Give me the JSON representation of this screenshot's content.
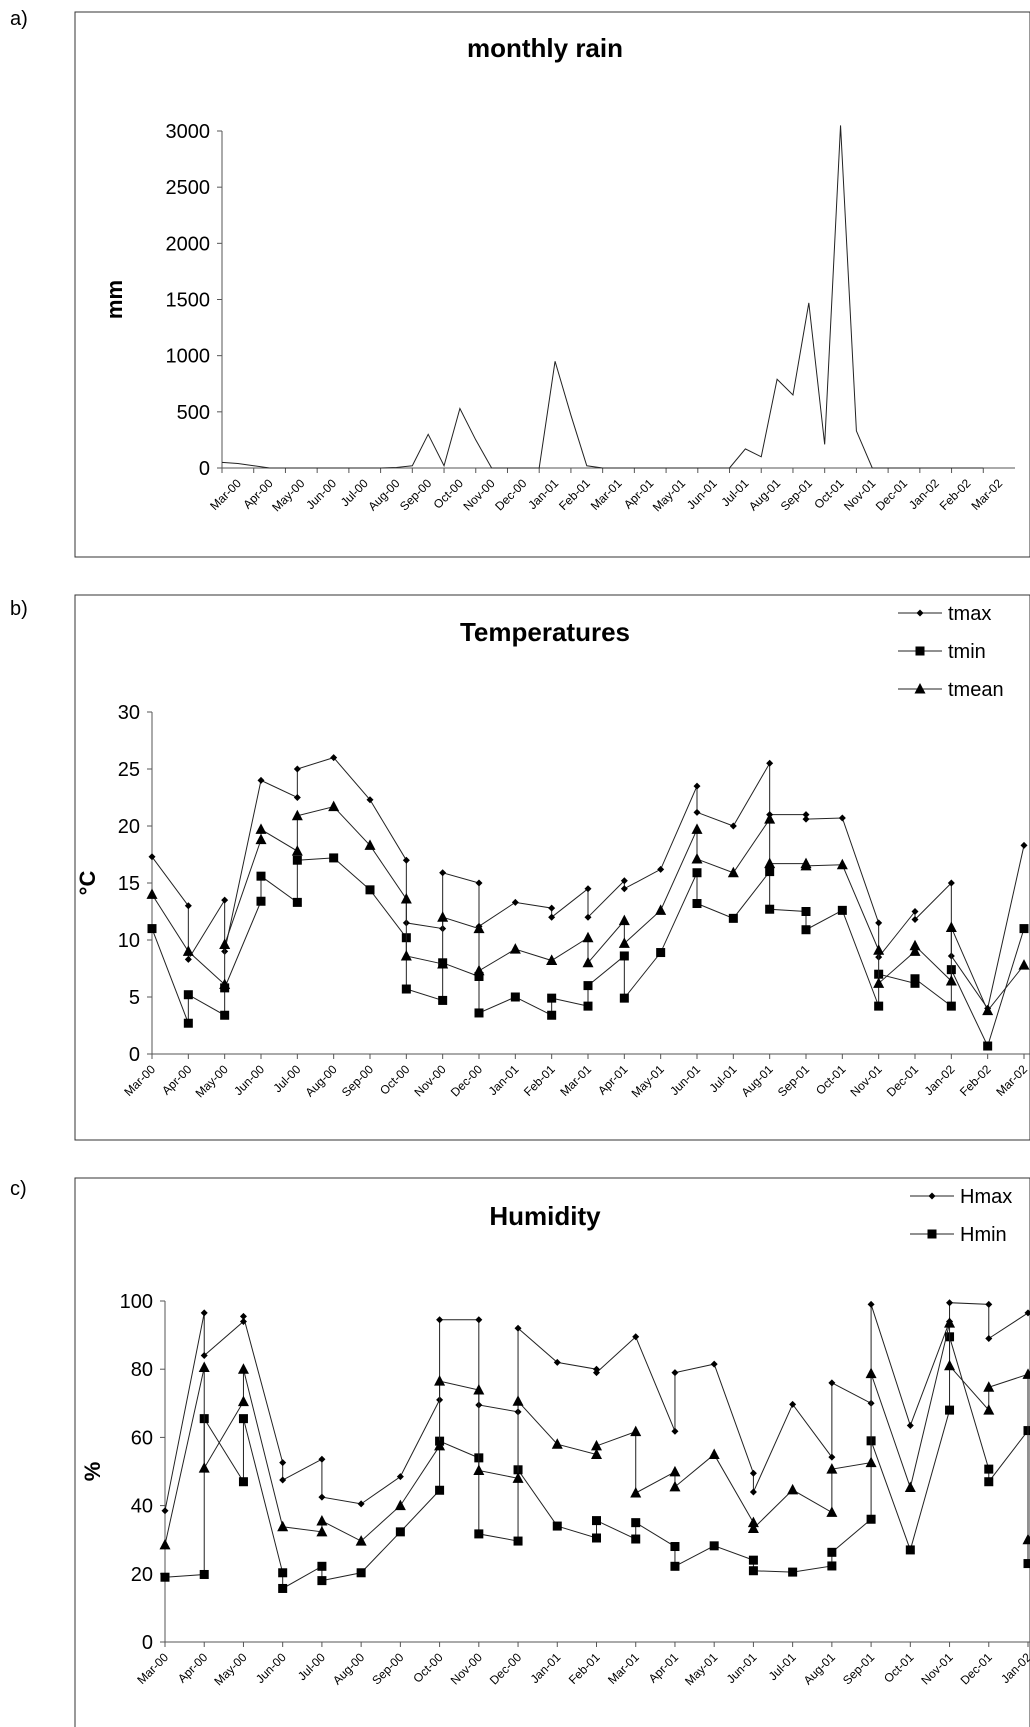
{
  "panels": [
    "a)",
    "b)",
    "c)"
  ],
  "chart_data": [
    {
      "type": "line",
      "title": "monthly rain",
      "ylabel": "mm",
      "xlabel": "",
      "ylim": [
        0,
        3000
      ],
      "yticks": [
        0,
        500,
        1000,
        1500,
        2000,
        2500,
        3000
      ],
      "grid": false,
      "categories": [
        "Mar-00",
        "Apr-00",
        "May-00",
        "Jun-00",
        "Jul-00",
        "Aug-00",
        "Sep-00",
        "Oct-00",
        "Nov-00",
        "Dec-00",
        "Jan-01",
        "Feb-01",
        "Mar-01",
        "Apr-01",
        "May-01",
        "Jun-01",
        "Jul-01",
        "Aug-01",
        "Sep-01",
        "Oct-01",
        "Nov-01",
        "Dec-01",
        "Jan-02",
        "Feb-02",
        "Mar-02"
      ],
      "series": [
        {
          "x": [
            0,
            1,
            2,
            3,
            4,
            5,
            6,
            7,
            8,
            9,
            10,
            11,
            12,
            13,
            14,
            15,
            16,
            17,
            18,
            19,
            20,
            21,
            22,
            23,
            24,
            25,
            26,
            27,
            28,
            29,
            30,
            31,
            32,
            33,
            34,
            35,
            36,
            37,
            38,
            39,
            40,
            41,
            42,
            43,
            44,
            45,
            46,
            47,
            48
          ],
          "values": [
            50,
            40,
            20,
            0,
            0,
            0,
            0,
            0,
            0,
            0,
            0,
            5,
            20,
            300,
            20,
            530,
            250,
            0,
            0,
            0,
            0,
            950,
            470,
            20,
            0,
            0,
            0,
            0,
            0,
            0,
            0,
            0,
            0,
            170,
            100,
            790,
            650,
            1470,
            210,
            3050,
            330,
            0,
            0,
            0,
            0,
            0,
            0,
            0,
            0
          ]
        }
      ]
    },
    {
      "type": "line",
      "title": "Temperatures",
      "ylabel": "°C",
      "xlabel": "",
      "ylim": [
        0,
        30
      ],
      "yticks": [
        0,
        5,
        10,
        15,
        20,
        25,
        30
      ],
      "grid": false,
      "legend_position": "top-right",
      "categories": [
        "Mar-00",
        "Apr-00",
        "May-00",
        "Jun-00",
        "Jul-00",
        "Aug-00",
        "Sep-00",
        "Oct-00",
        "Nov-00",
        "Dec-00",
        "Jan-01",
        "Feb-01",
        "Mar-01",
        "Apr-01",
        "May-01",
        "Jun-01",
        "Jul-01",
        "Aug-01",
        "Sep-01",
        "Oct-01",
        "Nov-01",
        "Dec-01",
        "Jan-02",
        "Feb-02",
        "Mar-02"
      ],
      "series": [
        {
          "name": "tmax",
          "marker": "diamond",
          "x": [
            0,
            1,
            1,
            2,
            2,
            3,
            4,
            4,
            5,
            6,
            7,
            7,
            8,
            8,
            9,
            9,
            10,
            11,
            11,
            12,
            12,
            13,
            13,
            14,
            15,
            15,
            16,
            17,
            17,
            18,
            18,
            19,
            20,
            20,
            21,
            21,
            22,
            22,
            23,
            24
          ],
          "values": [
            17.3,
            13.0,
            8.3,
            13.5,
            9.0,
            24.0,
            22.5,
            25.0,
            26.0,
            22.3,
            17.0,
            11.5,
            11.0,
            15.9,
            15.0,
            11.2,
            13.3,
            12.8,
            12.0,
            14.5,
            12.0,
            15.2,
            14.5,
            16.2,
            23.5,
            21.2,
            20.0,
            25.5,
            21.0,
            21.0,
            20.6,
            20.7,
            11.5,
            8.5,
            12.5,
            11.8,
            15.0,
            8.6,
            4.0,
            18.3
          ]
        },
        {
          "name": "tmin",
          "marker": "square",
          "x": [
            0,
            1,
            1,
            2,
            2,
            3,
            3,
            4,
            4,
            5,
            6,
            7,
            7,
            8,
            8,
            9,
            9,
            10,
            11,
            11,
            12,
            12,
            13,
            13,
            14,
            15,
            15,
            16,
            17,
            17,
            18,
            18,
            19,
            20,
            20,
            21,
            21,
            22,
            22,
            23,
            24
          ],
          "values": [
            11.0,
            2.7,
            5.2,
            3.4,
            5.8,
            13.4,
            15.6,
            13.3,
            17.0,
            17.2,
            14.4,
            10.2,
            5.7,
            4.7,
            8.0,
            6.8,
            3.6,
            5.0,
            3.4,
            4.9,
            4.2,
            6.0,
            8.6,
            4.9,
            8.9,
            15.9,
            13.2,
            11.9,
            16.0,
            12.7,
            12.5,
            10.9,
            12.6,
            4.2,
            7.0,
            6.2,
            6.6,
            4.2,
            7.4,
            0.7,
            11.0
          ]
        },
        {
          "name": "tmean",
          "marker": "triangle",
          "x": [
            0,
            1,
            2,
            2,
            3,
            3,
            4,
            4,
            5,
            6,
            7,
            7,
            8,
            8,
            9,
            9,
            10,
            11,
            11,
            12,
            12,
            13,
            13,
            14,
            15,
            15,
            16,
            17,
            17,
            18,
            18,
            19,
            20,
            20,
            21,
            21,
            22,
            22,
            23,
            24
          ],
          "values": [
            14.0,
            9.0,
            6.1,
            9.6,
            18.8,
            19.7,
            17.8,
            20.9,
            21.7,
            18.3,
            13.6,
            8.6,
            7.9,
            12.0,
            11.0,
            7.3,
            9.2,
            8.2,
            8.2,
            10.2,
            8.0,
            11.7,
            9.7,
            12.6,
            19.7,
            17.1,
            15.9,
            20.6,
            16.7,
            16.7,
            16.5,
            16.6,
            9.1,
            6.2,
            9.0,
            9.5,
            6.4,
            11.1,
            3.8,
            7.8
          ]
        }
      ]
    },
    {
      "type": "line",
      "title": "Humidity",
      "ylabel": "%",
      "xlabel": "",
      "ylim": [
        0,
        100
      ],
      "yticks": [
        0,
        20,
        40,
        60,
        80,
        100
      ],
      "grid": false,
      "legend_position": "top-right",
      "categories": [
        "Mar-00",
        "Apr-00",
        "May-00",
        "Jun-00",
        "Jul-00",
        "Aug-00",
        "Sep-00",
        "Oct-00",
        "Nov-00",
        "Dec-00",
        "Jan-01",
        "Feb-01",
        "Mar-01",
        "Apr-01",
        "May-01",
        "Jun-01",
        "Jul-01",
        "Aug-01",
        "Sep-01",
        "Oct-01",
        "Nov-01",
        "Dec-01",
        "Jan-02"
      ],
      "series": [
        {
          "name": "Hmax",
          "marker": "diamond",
          "x": [
            0,
            1,
            1,
            2,
            2,
            3,
            3,
            4,
            4,
            5,
            6,
            7,
            7,
            8,
            8,
            9,
            9,
            10,
            11,
            11,
            12,
            13,
            13,
            14,
            15,
            15,
            16,
            17,
            17,
            18,
            18,
            19,
            20,
            20,
            21,
            21,
            22
          ],
          "values": [
            38.5,
            96.5,
            84.0,
            94.0,
            95.5,
            52.6,
            47.5,
            53.6,
            42.5,
            40.5,
            48.5,
            71.0,
            94.5,
            94.5,
            69.5,
            67.5,
            92.0,
            82.0,
            80.0,
            79.0,
            89.5,
            61.8,
            79.0,
            81.5,
            49.5,
            44.0,
            69.7,
            54.2,
            76.0,
            70.0,
            99.0,
            63.5,
            94.0,
            99.5,
            99.0,
            89.0,
            96.5
          ]
        },
        {
          "name": "Hmin",
          "marker": "square",
          "x": [
            0,
            1,
            1,
            2,
            2,
            3,
            3,
            4,
            4,
            5,
            6,
            7,
            7,
            8,
            8,
            9,
            9,
            10,
            11,
            11,
            12,
            12,
            13,
            13,
            14,
            15,
            15,
            16,
            17,
            17,
            18,
            18,
            19,
            20,
            20,
            21,
            21,
            22,
            22
          ],
          "values": [
            19.0,
            19.8,
            65.5,
            47.0,
            65.5,
            20.3,
            15.7,
            22.2,
            18.0,
            20.3,
            32.3,
            44.5,
            58.9,
            54.0,
            31.7,
            29.6,
            50.5,
            34.0,
            30.5,
            35.6,
            30.2,
            35.0,
            28.0,
            22.2,
            28.2,
            24.0,
            20.9,
            20.5,
            22.3,
            26.3,
            36.0,
            59.0,
            27.0,
            68.0,
            89.5,
            50.7,
            47.0,
            62.0,
            23.0
          ]
        },
        {
          "marker": "triangle",
          "x": [
            0,
            1,
            1,
            2,
            2,
            3,
            4,
            4,
            5,
            6,
            7,
            7,
            8,
            8,
            9,
            9,
            10,
            11,
            11,
            12,
            12,
            13,
            13,
            14,
            15,
            15,
            16,
            17,
            17,
            18,
            18,
            19,
            20,
            20,
            21,
            21,
            22,
            22
          ],
          "values": [
            28.5,
            80.5,
            51.0,
            70.5,
            80.0,
            33.8,
            32.3,
            35.5,
            29.6,
            40.0,
            57.5,
            76.5,
            73.9,
            50.3,
            48.0,
            70.6,
            58.0,
            55.0,
            57.5,
            61.7,
            43.7,
            49.9,
            45.5,
            55.0,
            35.0,
            33.3,
            44.6,
            38.0,
            50.7,
            52.6,
            78.7,
            45.3,
            93.5,
            81.0,
            68.0,
            74.7,
            78.5,
            30.0
          ]
        }
      ]
    }
  ]
}
